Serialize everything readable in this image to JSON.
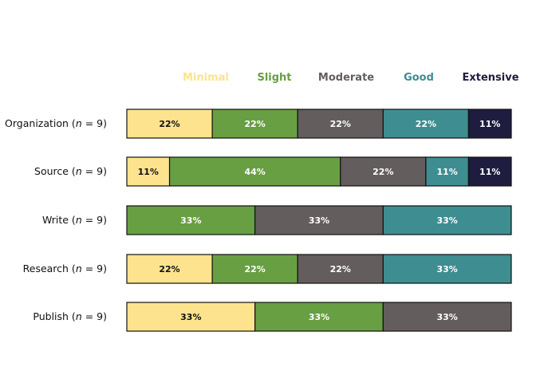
{
  "chart_data": {
    "type": "bar",
    "orientation": "horizontal",
    "stacked": true,
    "normalized_percent": true,
    "legend_position": "top",
    "grid": false,
    "categories": [
      {
        "name": "Organization",
        "n_label": "n",
        "n_value": "9"
      },
      {
        "name": "Source",
        "n_label": "n",
        "n_value": "9"
      },
      {
        "name": "Write",
        "n_label": "n",
        "n_value": "9"
      },
      {
        "name": "Research",
        "n_label": "n",
        "n_value": "9"
      },
      {
        "name": "Publish",
        "n_label": "n",
        "n_value": "9"
      }
    ],
    "series": [
      {
        "name": "Minimal",
        "color": "#FDE38D",
        "text_color": "#111111",
        "values": [
          22,
          11,
          0,
          22,
          33
        ],
        "labels": [
          "22%",
          "11%",
          "",
          "22%",
          "33%"
        ]
      },
      {
        "name": "Slight",
        "color": "#679F42",
        "text_color": "#ffffff",
        "values": [
          22,
          44,
          33,
          22,
          33
        ],
        "labels": [
          "22%",
          "44%",
          "33%",
          "22%",
          "33%"
        ]
      },
      {
        "name": "Moderate",
        "color": "#635E5D",
        "text_color": "#ffffff",
        "values": [
          22,
          22,
          33,
          22,
          33
        ],
        "labels": [
          "22%",
          "22%",
          "33%",
          "22%",
          "33%"
        ]
      },
      {
        "name": "Good",
        "color": "#3E8D91",
        "text_color": "#ffffff",
        "values": [
          22,
          11,
          33,
          33,
          0
        ],
        "labels": [
          "22%",
          "11%",
          "33%",
          "33%",
          ""
        ]
      },
      {
        "name": "Extensive",
        "color": "#1F1D3F",
        "text_color": "#ffffff",
        "values": [
          11,
          11,
          0,
          0,
          0
        ],
        "labels": [
          "11%",
          "11%",
          "",
          "",
          ""
        ]
      }
    ]
  }
}
